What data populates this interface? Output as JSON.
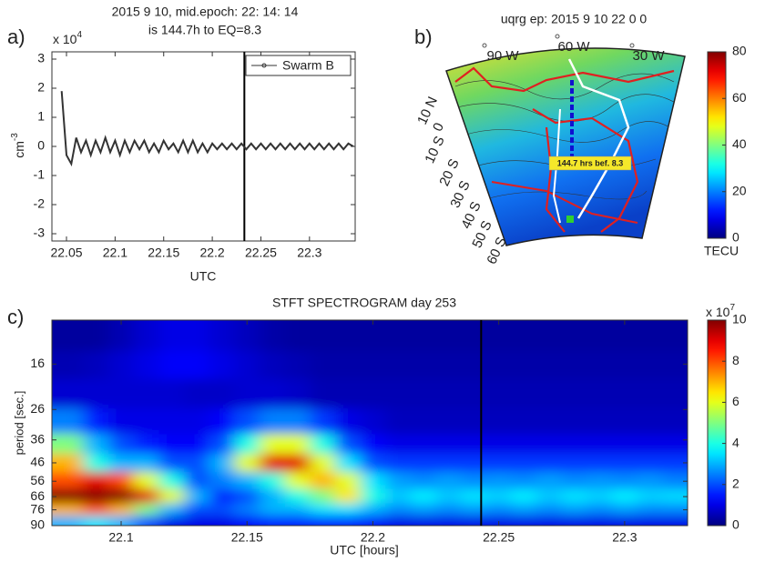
{
  "chart_data": [
    {
      "type": "line",
      "panel_label": "a)",
      "title": [
        "2015  9 10, mid.epoch: 22: 14: 14",
        "is 144.7h to EQ=8.3"
      ],
      "y_scale_label": {
        "base": "x 10",
        "exponent": "4"
      },
      "ylabel": {
        "base": "cm",
        "exponent": "-3"
      },
      "xlabel": "UTC",
      "xlim": [
        22.035,
        22.347
      ],
      "xticks": [
        22.05,
        22.1,
        22.15,
        22.2,
        22.25,
        22.3
      ],
      "ylim": [
        -3.25,
        3.25
      ],
      "yticks": [
        -3,
        -2,
        -1,
        0,
        1,
        2,
        3
      ],
      "event_x": 22.233,
      "legend": "upper right",
      "x": [
        22.045,
        22.05,
        22.055,
        22.06,
        22.065,
        22.07,
        22.075,
        22.08,
        22.085,
        22.09,
        22.095,
        22.1,
        22.105,
        22.11,
        22.115,
        22.12,
        22.125,
        22.13,
        22.135,
        22.14,
        22.145,
        22.15,
        22.155,
        22.16,
        22.165,
        22.17,
        22.175,
        22.18,
        22.185,
        22.19,
        22.195,
        22.2,
        22.205,
        22.21,
        22.215,
        22.22,
        22.225,
        22.23,
        22.235,
        22.24,
        22.245,
        22.25,
        22.255,
        22.26,
        22.265,
        22.27,
        22.275,
        22.28,
        22.285,
        22.29,
        22.295,
        22.3,
        22.305,
        22.31,
        22.315,
        22.32,
        22.325,
        22.33,
        22.335,
        22.34,
        22.345
      ],
      "series": [
        {
          "name": "Swarm B",
          "color": "#333333",
          "values": [
            1.9,
            -0.3,
            -0.6,
            0.3,
            -0.2,
            0.2,
            -0.3,
            0.2,
            -0.2,
            0.3,
            -0.2,
            0.2,
            -0.3,
            0.2,
            -0.2,
            0.2,
            -0.1,
            0.2,
            -0.2,
            0.1,
            -0.2,
            0.2,
            -0.1,
            0.1,
            -0.2,
            0.2,
            -0.2,
            0.2,
            -0.2,
            0.1,
            -0.2,
            0.1,
            -0.1,
            0.1,
            -0.1,
            0.1,
            -0.1,
            0.1,
            -0.1,
            0.1,
            -0.1,
            0.1,
            -0.1,
            0.1,
            -0.1,
            0.1,
            -0.1,
            0.1,
            -0.1,
            0.1,
            -0.1,
            0.1,
            -0.1,
            0.1,
            -0.1,
            0.1,
            -0.1,
            0.1,
            -0.1,
            0.1,
            0
          ]
        }
      ]
    },
    {
      "type": "map",
      "panel_label": "b)",
      "title": "uqrg ep: 2015    9    10    22    0    0",
      "lon_labels": [
        "90  W",
        "60  W",
        "30  W"
      ],
      "lat_labels": [
        "10  N",
        "0",
        "10  S",
        "20  S",
        "30  S",
        "40  S",
        "50  S",
        "60  S"
      ],
      "annotation": "144.7 hrs bef. 8.3",
      "colormap": "jet",
      "clim": [
        0,
        80
      ],
      "cticks": [
        0,
        20,
        40,
        60,
        80
      ],
      "clabel": "TECU"
    },
    {
      "type": "heatmap",
      "panel_label": "c)",
      "title": "STFT  SPECTROGRAM  day   253",
      "xlabel": "UTC [hours]",
      "ylabel": "period [sec.]",
      "xlim": [
        22.0725,
        22.325
      ],
      "xticks": [
        22.1,
        22.15,
        22.2,
        22.25,
        22.3
      ],
      "ylim": [
        10,
        90
      ],
      "ylog": true,
      "yreverse": true,
      "yticks": [
        16,
        26,
        36,
        46,
        56,
        66,
        76,
        90
      ],
      "event_x": 22.243,
      "colormap": "jet",
      "clim": [
        0,
        10
      ],
      "cticks": [
        0,
        2,
        4,
        6,
        8,
        10
      ],
      "c_scale_label": {
        "base": "x 10",
        "exponent": "7"
      },
      "x": [
        22.08,
        22.09,
        22.1,
        22.11,
        22.12,
        22.13,
        22.14,
        22.15,
        22.16,
        22.17,
        22.18,
        22.19,
        22.2,
        22.21,
        22.22,
        22.23,
        22.24,
        22.25,
        22.26,
        22.27,
        22.28,
        22.29,
        22.3,
        22.31,
        22.32
      ],
      "y": [
        12,
        16,
        22,
        30,
        38,
        46,
        56,
        66,
        76,
        86
      ],
      "z": [
        [
          0.3,
          0.3,
          0.5,
          0.8,
          1,
          1,
          0.8,
          0.6,
          0.4,
          0.3,
          0.3,
          0.3,
          0.3,
          0.3,
          0.3,
          0.3,
          0.3,
          0.3,
          0.3,
          0.3,
          0.3,
          0.3,
          0.3,
          0.3,
          0.3
        ],
        [
          0.5,
          0.6,
          0.8,
          1,
          1.2,
          1.2,
          1,
          0.8,
          0.6,
          0.5,
          0.4,
          0.4,
          0.4,
          0.4,
          0.4,
          0.4,
          0.4,
          0.4,
          0.4,
          0.4,
          0.4,
          0.4,
          0.4,
          0.4,
          0.4
        ],
        [
          0.8,
          0.8,
          0.8,
          0.8,
          0.8,
          0.7,
          0.7,
          0.8,
          0.8,
          0.7,
          0.5,
          0.5,
          0.5,
          0.5,
          0.5,
          0.5,
          0.5,
          0.5,
          0.5,
          0.5,
          0.5,
          0.5,
          0.5,
          0.5,
          0.5
        ],
        [
          2.5,
          1.5,
          1,
          1,
          1,
          1,
          1.2,
          2,
          2.5,
          2.5,
          1.8,
          1,
          0.8,
          0.6,
          0.6,
          0.6,
          0.6,
          0.6,
          0.6,
          0.6,
          0.6,
          0.6,
          0.6,
          0.6,
          0.6
        ],
        [
          5,
          3,
          2,
          1.5,
          1.2,
          1.2,
          2,
          4,
          6,
          6,
          4,
          2,
          1.2,
          1,
          1,
          1,
          1,
          1,
          1,
          1,
          1,
          1,
          1,
          1,
          1
        ],
        [
          7,
          4,
          3,
          3,
          2,
          2,
          3,
          6,
          9,
          9,
          6,
          3.5,
          2,
          1.8,
          1.8,
          1.8,
          1.8,
          1.8,
          1.8,
          1.8,
          1.8,
          1.8,
          1.8,
          1.8,
          1.8
        ],
        [
          8,
          9,
          8,
          6,
          4,
          2,
          2.5,
          3,
          4,
          6,
          7,
          6,
          3.5,
          2.8,
          2.6,
          2.8,
          2.6,
          2.7,
          2.6,
          2.8,
          2.6,
          2.7,
          2.6,
          2.7,
          2.5
        ],
        [
          10,
          10,
          10,
          9,
          6,
          3,
          1.5,
          2,
          3,
          4,
          5,
          6.5,
          4,
          3.2,
          3.6,
          3.2,
          3.5,
          3.3,
          3.6,
          3.2,
          3.5,
          3.3,
          3.6,
          3.3,
          3.4
        ],
        [
          7,
          8,
          7,
          5,
          3,
          2,
          2,
          2.5,
          3,
          3,
          3.5,
          3.5,
          3,
          2.6,
          2.8,
          2.6,
          2.8,
          2.6,
          2.8,
          2.6,
          2.8,
          2.6,
          2.8,
          2.6,
          2.6
        ],
        [
          3,
          3.5,
          3,
          2,
          1,
          1,
          1,
          1.2,
          1.5,
          1.5,
          1.5,
          1.5,
          1.2,
          1,
          1,
          1,
          1,
          1,
          1,
          1,
          1,
          1,
          1,
          1,
          1
        ]
      ]
    }
  ]
}
